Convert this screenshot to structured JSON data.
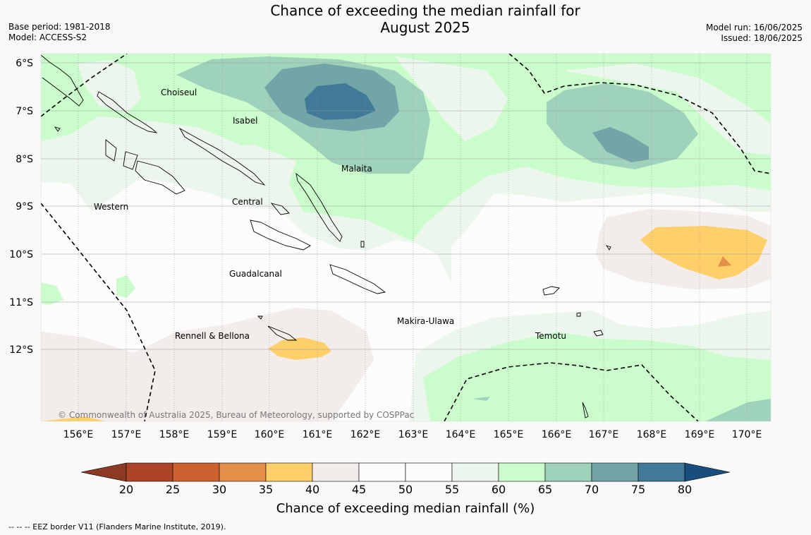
{
  "title_line1": "Chance of exceeding the median rainfall for",
  "title_line2": "August 2025",
  "base_period": "Base period: 1981-2018",
  "model": "Model: ACCESS-S2",
  "model_run": "Model run: 16/06/2025",
  "issued": "Issued: 18/06/2025",
  "copyright": "© Commonwealth of Australia 2025, Bureau of Meteorology, supported by COSPPac",
  "footer": "--  --  -- EEZ border V11 (Flanders Marine Institute, 2019).",
  "map": {
    "lat_labels": [
      "6°S",
      "7°S",
      "8°S",
      "9°S",
      "10°S",
      "11°S",
      "12°S"
    ],
    "lon_labels": [
      "156°E",
      "157°E",
      "158°E",
      "159°E",
      "160°E",
      "161°E",
      "162°E",
      "163°E",
      "164°E",
      "165°E",
      "166°E",
      "167°E",
      "168°E",
      "169°E",
      "170°E"
    ],
    "places": [
      "Choiseul",
      "Isabel",
      "Malaita",
      "Western",
      "Central",
      "Guadalcanal",
      "Makira-Ulawa",
      "Rennell & Bellona",
      "Temotu"
    ]
  },
  "colorbar": {
    "title": "Chance of exceeding median rainfall (%)",
    "ticks": [
      "20",
      "25",
      "30",
      "35",
      "40",
      "45",
      "50",
      "55",
      "60",
      "65",
      "70",
      "75",
      "80"
    ],
    "colors": [
      "#ad4428",
      "#cd6230",
      "#e3914a",
      "#ffcf6a",
      "#f2ecea",
      "#fbfcfb",
      "#fbfcfb",
      "#edf6ed",
      "#cbfdcc",
      "#9fd2bb",
      "#71a5a8",
      "#417998"
    ],
    "extend_low_color": "#8c3a22",
    "extend_high_color": "#174e7d"
  }
}
